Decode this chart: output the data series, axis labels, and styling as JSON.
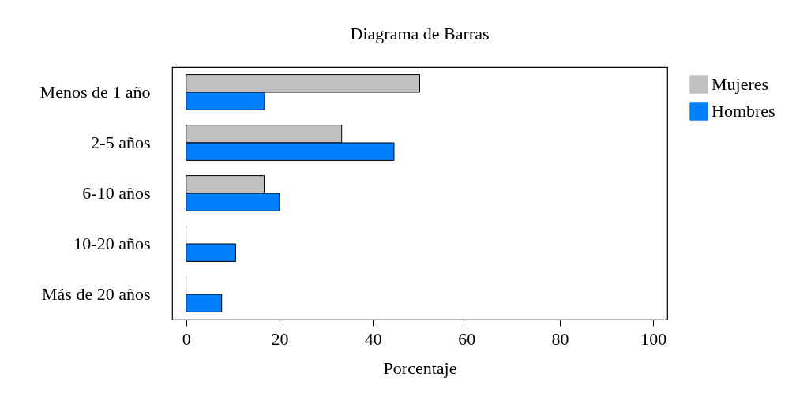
{
  "chart_data": {
    "type": "bar",
    "orientation": "horizontal",
    "title": "Diagrama de Barras",
    "xlabel": "Porcentaje",
    "categories": [
      "Menos de 1 año",
      "2-5 años",
      "6-10 años",
      "10-20 años",
      "Más de 20 años"
    ],
    "series": [
      {
        "name": "Mujeres",
        "color": "#c0c0c0",
        "values": [
          50,
          33.3,
          16.7,
          0,
          0
        ]
      },
      {
        "name": "Hombres",
        "color": "#0080ff",
        "values": [
          16.8,
          44.5,
          20,
          10.6,
          7.6
        ]
      }
    ],
    "xlim": [
      -3,
      103
    ],
    "xticks": [
      0,
      20,
      40,
      60,
      80,
      100
    ],
    "grid": false,
    "legend": "right"
  }
}
